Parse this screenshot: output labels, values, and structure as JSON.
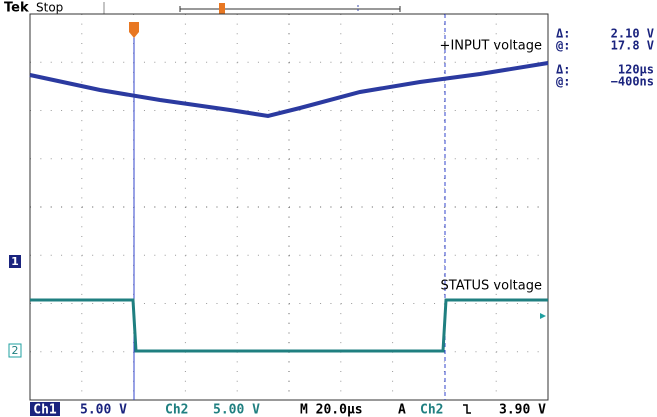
{
  "header": {
    "brand": "Tek",
    "status": "Stop"
  },
  "readouts": [
    {
      "label": "Δ:",
      "value": "2.10 V"
    },
    {
      "label": "@:",
      "value": "17.8 V"
    },
    {
      "label": "Δ:",
      "value": "120µs"
    },
    {
      "label": "@:",
      "value": "−400ns"
    }
  ],
  "trace_labels": [
    "+INPUT voltage",
    "STATUS voltage"
  ],
  "channel_markers": [
    "1",
    "2"
  ],
  "footer": {
    "ch1": "Ch1",
    "ch1_scale": "5.00 V",
    "ch2": "Ch2",
    "ch2_scale": "5.00 V",
    "timebase": "M 20.0µs",
    "trigger_mode": "A",
    "trigger_source": "Ch2",
    "trigger_level": "3.90 V"
  }
}
